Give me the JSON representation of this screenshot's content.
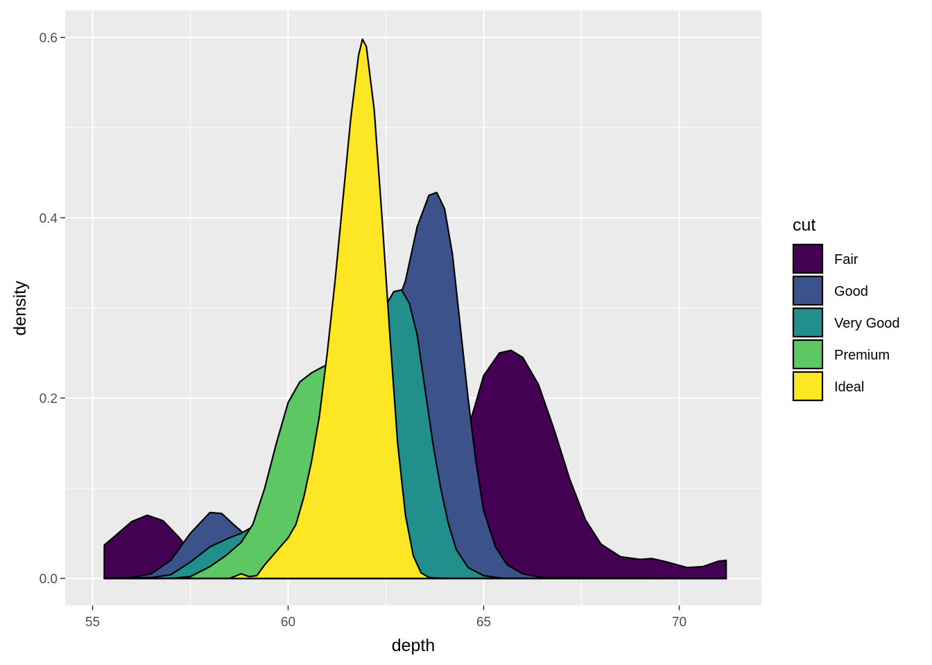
{
  "chart_data": {
    "type": "area",
    "xlabel": "depth",
    "ylabel": "density",
    "xlim": [
      54.3,
      72.1
    ],
    "ylim": [
      -0.03,
      0.63
    ],
    "x_ticks": [
      55,
      60,
      65,
      70
    ],
    "x_tick_labels": [
      "55",
      "60",
      "65",
      "70"
    ],
    "y_ticks": [
      0.0,
      0.2,
      0.4,
      0.6
    ],
    "y_tick_labels": [
      "0.0",
      "0.2",
      "0.4",
      "0.6"
    ],
    "x_minor_ticks": [
      57.5,
      62.5,
      67.5
    ],
    "y_minor_ticks": [
      0.1,
      0.3,
      0.5
    ],
    "grid": true,
    "legend": {
      "title": "cut",
      "placement": "right"
    },
    "series": [
      {
        "name": "Fair",
        "color": "#440154",
        "points": [
          [
            55.3,
            0.037
          ],
          [
            55.6,
            0.048
          ],
          [
            56.0,
            0.063
          ],
          [
            56.4,
            0.07
          ],
          [
            56.8,
            0.064
          ],
          [
            57.2,
            0.046
          ],
          [
            57.5,
            0.03
          ],
          [
            57.8,
            0.021
          ],
          [
            58.0,
            0.02
          ],
          [
            58.5,
            0.018
          ],
          [
            59.0,
            0.015
          ],
          [
            60.0,
            0.014
          ],
          [
            61.0,
            0.016
          ],
          [
            62.0,
            0.018
          ],
          [
            63.0,
            0.03
          ],
          [
            64.0,
            0.08
          ],
          [
            64.5,
            0.15
          ],
          [
            65.0,
            0.225
          ],
          [
            65.4,
            0.25
          ],
          [
            65.7,
            0.253
          ],
          [
            66.0,
            0.245
          ],
          [
            66.4,
            0.215
          ],
          [
            66.8,
            0.165
          ],
          [
            67.2,
            0.11
          ],
          [
            67.6,
            0.065
          ],
          [
            68.0,
            0.038
          ],
          [
            68.5,
            0.024
          ],
          [
            69.0,
            0.021
          ],
          [
            69.3,
            0.022
          ],
          [
            69.7,
            0.018
          ],
          [
            70.2,
            0.012
          ],
          [
            70.6,
            0.013
          ],
          [
            71.0,
            0.019
          ],
          [
            71.2,
            0.02
          ]
        ]
      },
      {
        "name": "Good",
        "color": "#3B528B",
        "points": [
          [
            55.3,
            0.0
          ],
          [
            56.0,
            0.001
          ],
          [
            56.5,
            0.005
          ],
          [
            57.0,
            0.02
          ],
          [
            57.5,
            0.05
          ],
          [
            58.0,
            0.073
          ],
          [
            58.3,
            0.072
          ],
          [
            58.6,
            0.06
          ],
          [
            59.0,
            0.045
          ],
          [
            59.5,
            0.06
          ],
          [
            60.0,
            0.1
          ],
          [
            60.5,
            0.14
          ],
          [
            61.0,
            0.17
          ],
          [
            61.5,
            0.2
          ],
          [
            62.0,
            0.23
          ],
          [
            62.5,
            0.27
          ],
          [
            63.0,
            0.33
          ],
          [
            63.3,
            0.39
          ],
          [
            63.6,
            0.425
          ],
          [
            63.8,
            0.428
          ],
          [
            64.0,
            0.41
          ],
          [
            64.2,
            0.36
          ],
          [
            64.4,
            0.28
          ],
          [
            64.6,
            0.2
          ],
          [
            64.8,
            0.13
          ],
          [
            65.0,
            0.075
          ],
          [
            65.3,
            0.035
          ],
          [
            65.6,
            0.015
          ],
          [
            66.0,
            0.005
          ],
          [
            66.5,
            0.001
          ],
          [
            71.2,
            0.0
          ]
        ]
      },
      {
        "name": "Very Good",
        "color": "#21908C",
        "points": [
          [
            55.3,
            0.0
          ],
          [
            56.5,
            0.001
          ],
          [
            57.0,
            0.004
          ],
          [
            57.5,
            0.018
          ],
          [
            58.0,
            0.035
          ],
          [
            58.5,
            0.045
          ],
          [
            58.8,
            0.05
          ],
          [
            59.2,
            0.06
          ],
          [
            59.6,
            0.09
          ],
          [
            60.0,
            0.13
          ],
          [
            60.5,
            0.17
          ],
          [
            61.0,
            0.2
          ],
          [
            61.5,
            0.23
          ],
          [
            62.0,
            0.26
          ],
          [
            62.4,
            0.295
          ],
          [
            62.7,
            0.318
          ],
          [
            62.9,
            0.32
          ],
          [
            63.1,
            0.305
          ],
          [
            63.3,
            0.27
          ],
          [
            63.5,
            0.21
          ],
          [
            63.7,
            0.15
          ],
          [
            63.9,
            0.1
          ],
          [
            64.1,
            0.06
          ],
          [
            64.3,
            0.032
          ],
          [
            64.6,
            0.012
          ],
          [
            65.0,
            0.003
          ],
          [
            65.5,
            0.0
          ],
          [
            71.2,
            0.0
          ]
        ]
      },
      {
        "name": "Premium",
        "color": "#5DC863",
        "points": [
          [
            55.3,
            0.0
          ],
          [
            57.0,
            0.0
          ],
          [
            57.5,
            0.002
          ],
          [
            58.0,
            0.013
          ],
          [
            58.4,
            0.025
          ],
          [
            58.8,
            0.04
          ],
          [
            59.1,
            0.06
          ],
          [
            59.4,
            0.1
          ],
          [
            59.7,
            0.15
          ],
          [
            60.0,
            0.195
          ],
          [
            60.3,
            0.218
          ],
          [
            60.6,
            0.228
          ],
          [
            60.9,
            0.235
          ],
          [
            61.2,
            0.24
          ],
          [
            61.5,
            0.232
          ],
          [
            61.8,
            0.218
          ],
          [
            62.1,
            0.2
          ],
          [
            62.4,
            0.17
          ],
          [
            62.7,
            0.12
          ],
          [
            62.9,
            0.07
          ],
          [
            63.1,
            0.025
          ],
          [
            63.3,
            0.006
          ],
          [
            63.6,
            0.0
          ],
          [
            71.2,
            0.0
          ]
        ]
      },
      {
        "name": "Ideal",
        "color": "#FDE725",
        "points": [
          [
            55.3,
            0.0
          ],
          [
            58.5,
            0.0
          ],
          [
            58.8,
            0.005
          ],
          [
            59.0,
            0.002
          ],
          [
            59.2,
            0.003
          ],
          [
            59.4,
            0.015
          ],
          [
            59.7,
            0.03
          ],
          [
            60.0,
            0.045
          ],
          [
            60.2,
            0.06
          ],
          [
            60.4,
            0.09
          ],
          [
            60.6,
            0.13
          ],
          [
            60.8,
            0.18
          ],
          [
            61.0,
            0.25
          ],
          [
            61.2,
            0.33
          ],
          [
            61.4,
            0.42
          ],
          [
            61.6,
            0.51
          ],
          [
            61.8,
            0.58
          ],
          [
            61.9,
            0.598
          ],
          [
            62.0,
            0.59
          ],
          [
            62.2,
            0.52
          ],
          [
            62.4,
            0.4
          ],
          [
            62.6,
            0.27
          ],
          [
            62.8,
            0.15
          ],
          [
            63.0,
            0.07
          ],
          [
            63.2,
            0.025
          ],
          [
            63.4,
            0.006
          ],
          [
            63.6,
            0.001
          ],
          [
            64.0,
            0.0
          ],
          [
            71.2,
            0.0
          ]
        ]
      }
    ]
  }
}
